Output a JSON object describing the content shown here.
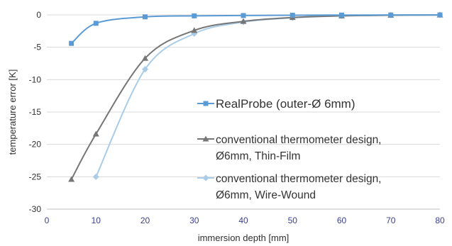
{
  "colors": {
    "grid": "#d9d9d9",
    "axis_text": "#2f2f2f",
    "x_tick_text": "#3a3f8f",
    "realprobe": "#5b9bd5",
    "thin_film": "#767676",
    "wire_wound": "#a9cce9"
  },
  "chart_data": {
    "type": "line",
    "xlabel": "immersion depth [mm]",
    "ylabel": "temperature error [K]",
    "xlim": [
      0,
      80
    ],
    "ylim": [
      -30,
      0
    ],
    "x_ticks": [
      "0",
      "10",
      "20",
      "30",
      "40",
      "50",
      "60",
      "70",
      "80"
    ],
    "y_ticks": [
      "0",
      "-5",
      "-10",
      "-15",
      "-20",
      "-25",
      "-30"
    ],
    "grid": "horizontal",
    "legend_position": "right",
    "series": [
      {
        "name": "RealProbe (outer-Ø 6mm)",
        "marker": "square",
        "color": "#5b9bd5",
        "x": [
          5,
          10,
          20,
          30,
          40,
          50,
          60,
          70,
          80
        ],
        "y": [
          -4.4,
          -1.3,
          -0.3,
          -0.15,
          -0.1,
          -0.05,
          -0.03,
          -0.02,
          -0.01
        ]
      },
      {
        "name": "conventional thermometer design, Ø6mm, Thin-Film",
        "legend_lines": [
          "conventional thermometer design,",
          "Ø6mm, Thin-Film"
        ],
        "marker": "triangle",
        "color": "#767676",
        "x": [
          5,
          10,
          20,
          30,
          40,
          50,
          60,
          70,
          80
        ],
        "y": [
          -25.4,
          -18.4,
          -6.7,
          -2.4,
          -1.0,
          -0.4,
          -0.15,
          -0.05,
          -0.02
        ]
      },
      {
        "name": "conventional thermometer design, Ø6mm, Wire-Wound",
        "legend_lines": [
          "conventional thermometer design,",
          "Ø6mm, Wire-Wound"
        ],
        "marker": "diamond",
        "color": "#a9cce9",
        "x": [
          10,
          20,
          30,
          40,
          50,
          60,
          70,
          80
        ],
        "y": [
          -25.0,
          -8.4,
          -2.9,
          -1.1,
          -0.45,
          -0.15,
          -0.05,
          -0.02
        ]
      }
    ]
  }
}
